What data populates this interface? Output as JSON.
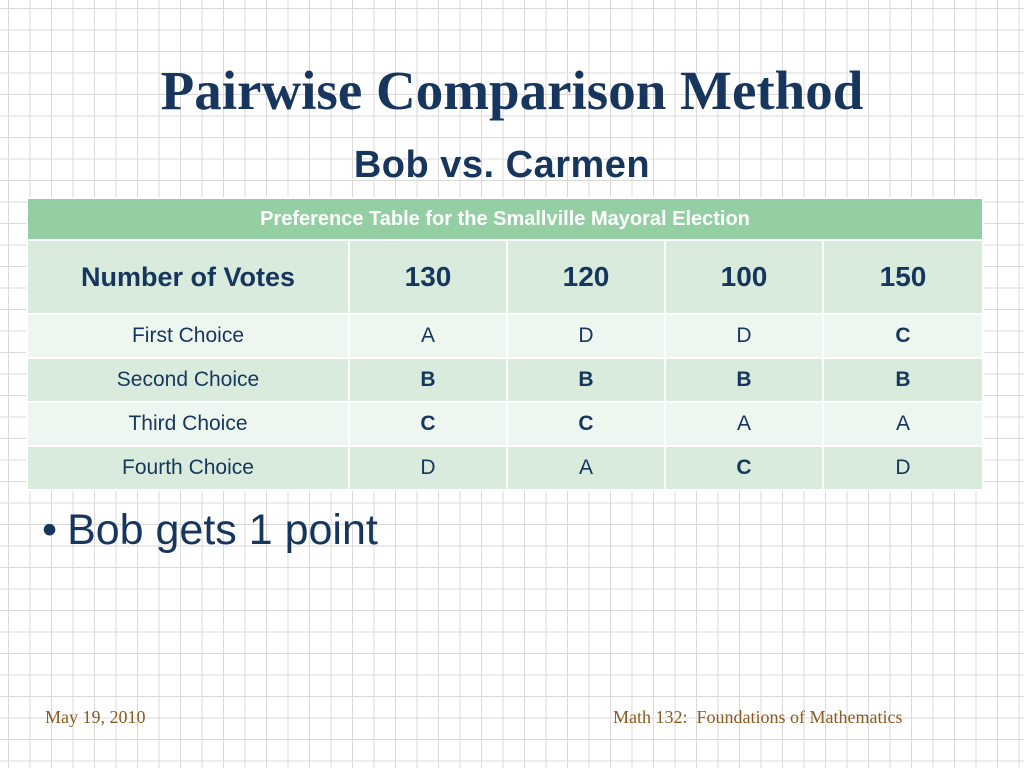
{
  "title": "Pairwise Comparison Method",
  "subtitle": "Bob vs. Carmen",
  "table": {
    "caption": "Preference Table for the Smallville Mayoral Election",
    "header": [
      "Number of Votes",
      "130",
      "120",
      "100",
      "150"
    ],
    "rows": [
      {
        "label": "First Choice",
        "cells": [
          "A",
          "D",
          "D",
          "C"
        ]
      },
      {
        "label": "Second Choice",
        "cells": [
          "B",
          "B",
          "B",
          "B"
        ]
      },
      {
        "label": "Third Choice",
        "cells": [
          "C",
          "C",
          "A",
          "A"
        ]
      },
      {
        "label": "Fourth Choice",
        "cells": [
          "D",
          "A",
          "C",
          "D"
        ]
      }
    ]
  },
  "bullet": {
    "marker": "•",
    "text": "Bob gets 1 point"
  },
  "footer": {
    "date": "May 19, 2010",
    "course": "Math 132:  Foundations of Mathematics"
  },
  "colors": {
    "title": "#17365d",
    "caption_bg": "#93cfa3",
    "row_dark": "#d9ebdd",
    "row_light": "#eef6f0",
    "footer": "#8a5a1f"
  }
}
